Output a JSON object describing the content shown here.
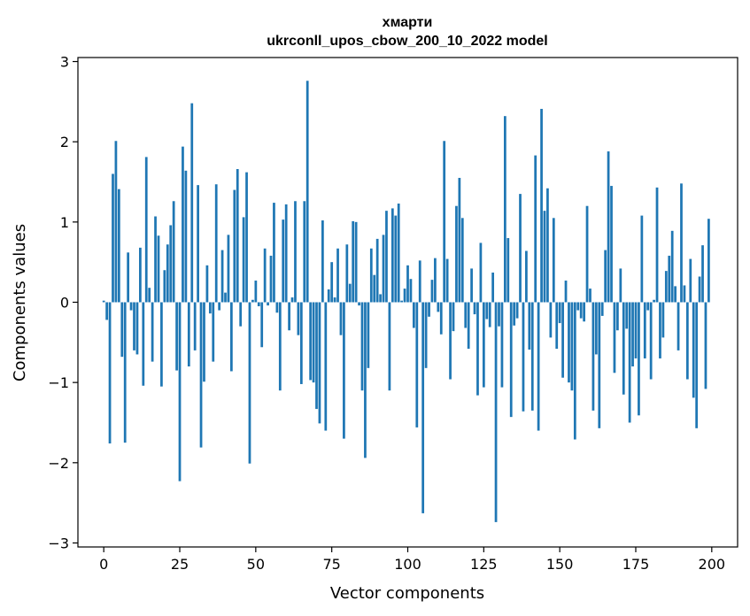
{
  "chart_data": {
    "type": "bar",
    "title": "хмарти",
    "subtitle": "ukrconll_upos_cbow_200_10_2022 model",
    "xlabel": "Vector components",
    "ylabel": "Components values",
    "xlim": [
      -8.5,
      208.5
    ],
    "ylim": [
      -3.05,
      3.05
    ],
    "xticks": [
      0,
      25,
      50,
      75,
      100,
      125,
      150,
      175,
      200
    ],
    "yticks": [
      -3,
      -2,
      -1,
      0,
      1,
      2,
      3
    ],
    "ytick_labels": [
      "−3",
      "−2",
      "−1",
      "0",
      "1",
      "2",
      "3"
    ],
    "grid": false,
    "bar_color": "#1f77b4",
    "x": [
      0,
      1,
      2,
      3,
      4,
      5,
      6,
      7,
      8,
      9,
      10,
      11,
      12,
      13,
      14,
      15,
      16,
      17,
      18,
      19,
      20,
      21,
      22,
      23,
      24,
      25,
      26,
      27,
      28,
      29,
      30,
      31,
      32,
      33,
      34,
      35,
      36,
      37,
      38,
      39,
      40,
      41,
      42,
      43,
      44,
      45,
      46,
      47,
      48,
      49,
      50,
      51,
      52,
      53,
      54,
      55,
      56,
      57,
      58,
      59,
      60,
      61,
      62,
      63,
      64,
      65,
      66,
      67,
      68,
      69,
      70,
      71,
      72,
      73,
      74,
      75,
      76,
      77,
      78,
      79,
      80,
      81,
      82,
      83,
      84,
      85,
      86,
      87,
      88,
      89,
      90,
      91,
      92,
      93,
      94,
      95,
      96,
      97,
      98,
      99,
      100,
      101,
      102,
      103,
      104,
      105,
      106,
      107,
      108,
      109,
      110,
      111,
      112,
      113,
      114,
      115,
      116,
      117,
      118,
      119,
      120,
      121,
      122,
      123,
      124,
      125,
      126,
      127,
      128,
      129,
      130,
      131,
      132,
      133,
      134,
      135,
      136,
      137,
      138,
      139,
      140,
      141,
      142,
      143,
      144,
      145,
      146,
      147,
      148,
      149,
      150,
      151,
      152,
      153,
      154,
      155,
      156,
      157,
      158,
      159,
      160,
      161,
      162,
      163,
      164,
      165,
      166,
      167,
      168,
      169,
      170,
      171,
      172,
      173,
      174,
      175,
      176,
      177,
      178,
      179,
      180,
      181,
      182,
      183,
      184,
      185,
      186,
      187,
      188,
      189,
      190,
      191,
      192,
      193,
      194,
      195,
      196,
      197,
      198,
      199
    ],
    "values": [
      0.02,
      -0.22,
      -1.76,
      1.6,
      2.01,
      1.41,
      -0.68,
      -1.75,
      0.62,
      -0.1,
      -0.6,
      -0.65,
      0.68,
      -1.04,
      1.81,
      0.18,
      -0.74,
      1.07,
      0.83,
      -1.05,
      0.4,
      0.72,
      0.96,
      1.26,
      -0.85,
      -2.23,
      1.94,
      1.64,
      -0.8,
      2.48,
      -0.6,
      1.46,
      -1.81,
      -0.99,
      0.46,
      -0.14,
      -0.74,
      1.47,
      -0.1,
      0.65,
      0.12,
      0.84,
      -0.86,
      1.4,
      1.66,
      -0.3,
      1.06,
      1.62,
      -2.01,
      0.03,
      0.27,
      -0.05,
      -0.56,
      0.67,
      -0.04,
      0.58,
      1.24,
      -0.13,
      -1.1,
      1.03,
      1.22,
      -0.35,
      0.06,
      1.26,
      -0.41,
      -1.02,
      1.26,
      2.76,
      -0.97,
      -1.0,
      -1.33,
      -1.51,
      1.02,
      -1.6,
      0.16,
      0.5,
      0.06,
      0.67,
      -0.41,
      -1.7,
      0.72,
      0.23,
      1.01,
      1.0,
      -0.04,
      -1.1,
      -1.94,
      -0.82,
      0.67,
      0.34,
      0.79,
      0.1,
      0.84,
      1.14,
      -1.1,
      1.17,
      1.08,
      1.23,
      0.02,
      0.17,
      0.46,
      0.29,
      -0.32,
      -1.56,
      0.52,
      -2.63,
      -0.82,
      -0.18,
      0.28,
      0.55,
      -0.12,
      -0.4,
      2.01,
      0.54,
      -0.96,
      -0.36,
      1.2,
      1.55,
      1.05,
      -0.32,
      -0.58,
      0.42,
      -0.15,
      -1.16,
      0.74,
      -1.06,
      -0.21,
      -0.31,
      0.37,
      -2.74,
      -0.3,
      -1.06,
      2.32,
      0.8,
      -1.43,
      -0.29,
      -0.2,
      1.35,
      -1.36,
      0.64,
      -0.59,
      -1.35,
      1.83,
      -1.6,
      2.41,
      1.14,
      1.42,
      -0.44,
      1.05,
      -0.58,
      -0.26,
      -0.94,
      0.27,
      -1.0,
      -1.1,
      -1.71,
      -0.1,
      -0.2,
      -0.24,
      1.2,
      0.17,
      -1.35,
      -0.65,
      -1.57,
      -0.17,
      0.65,
      1.88,
      1.45,
      -0.88,
      -0.35,
      0.42,
      -1.15,
      -0.33,
      -1.5,
      -0.8,
      -0.7,
      -1.41,
      1.08,
      -0.7,
      -0.1,
      -0.96,
      0.03,
      1.43,
      -0.7,
      -0.44,
      0.39,
      0.58,
      0.89,
      0.2,
      -0.6,
      1.48,
      0.21,
      -0.96,
      0.54,
      -1.19,
      -1.57,
      0.32,
      0.71,
      -1.08,
      1.04
    ]
  }
}
